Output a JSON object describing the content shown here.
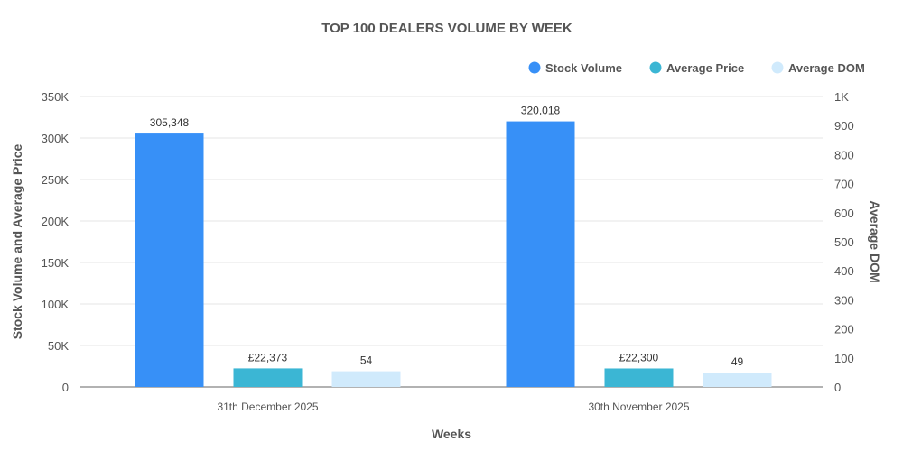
{
  "chart_data": {
    "type": "bar",
    "title": "TOP 100 DEALERS VOLUME BY WEEK",
    "xlabel": "Weeks",
    "ylabel": "Stock Volume and Average Price",
    "y2label": "Average DOM",
    "categories": [
      "31th December 2025",
      "30th November 2025"
    ],
    "series": [
      {
        "name": "Stock Volume",
        "axis": "left",
        "color": "#3790F7",
        "values": [
          305348,
          320018
        ],
        "labels": [
          "305,348",
          "320,018"
        ]
      },
      {
        "name": "Average Price",
        "axis": "left",
        "color": "#3BB6D4",
        "values": [
          22373,
          22300
        ],
        "labels": [
          "£22,373",
          "£22,300"
        ]
      },
      {
        "name": "Average DOM",
        "axis": "right",
        "color": "#D0EAFC",
        "values": [
          54,
          49
        ],
        "labels": [
          "54",
          "49"
        ]
      }
    ],
    "ylim": [
      0,
      350000
    ],
    "y2lim": [
      0,
      1000
    ],
    "yticks": [
      "0",
      "50K",
      "100K",
      "150K",
      "200K",
      "250K",
      "300K",
      "350K"
    ],
    "y2ticks": [
      "0",
      "100",
      "200",
      "300",
      "400",
      "500",
      "600",
      "700",
      "800",
      "900",
      "1K"
    ],
    "grid": true,
    "legend": "top-right"
  }
}
